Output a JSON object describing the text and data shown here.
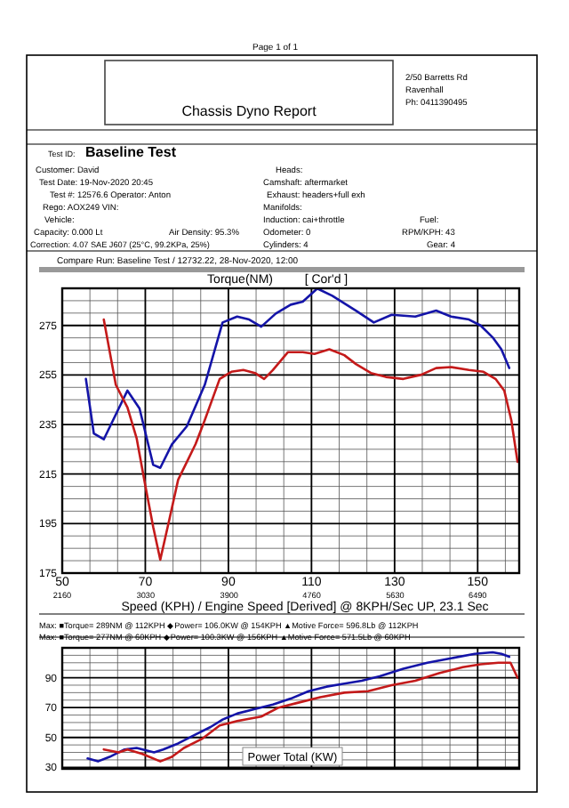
{
  "chart_data": [
    {
      "type": "line",
      "title": "Torque(NM)",
      "subtitle": "[ Cor'd ]",
      "xlabel": "Speed (KPH) / Engine Speed [Derived] @ 8KPH/Sec UP, 23.1 Sec",
      "annotations": [
        "Page 1 of 1",
        "Chassis Dyno Report",
        "2/50 Barretts Rd",
        "Ravenhall",
        "Ph: 0411390495",
        "Test ID:",
        "Baseline Test",
        "Customer: David",
        "Heads:",
        "Test Date: 19-Nov-2020 20:45",
        "Camshaft: aftermarket",
        "Test #: 12576.6 Operator: Anton",
        "Exhaust: headers+full exh",
        "Rego: AOX249 VIN:",
        "Manifolds:",
        "Vehicle:",
        "Induction: cai+throttle",
        "Fuel:",
        "Capacity: 0.000 Lt",
        "Air Density: 95.3%",
        "Odometer: 0",
        "RPM/KPH: 43",
        "Correction: 4.07 SAE J607 (25°C, 99.2KPa, 25%)",
        "Cylinders: 4",
        "Gear: 4",
        "Compare Run: Baseline Test / 12732.22, 28-Nov-2020, 12:00"
      ],
      "xlim": [
        50,
        160
      ],
      "ylim": [
        175,
        290
      ],
      "xticks": [
        50,
        70,
        90,
        110,
        130,
        150
      ],
      "x2lim": [
        2160,
        6923
      ],
      "x2ticks": [
        2160,
        3030,
        3900,
        4760,
        5630,
        6490
      ],
      "yticks": [
        175,
        195,
        215,
        235,
        255,
        275
      ],
      "grid": true,
      "series": [
        {
          "color": "#1414a8",
          "x": [
            55.7,
            57.6,
            60,
            63.6,
            65.7,
            68.6,
            71.9,
            73.6,
            76.4,
            80,
            84.3,
            88.6,
            92.1,
            95,
            97.9,
            101.4,
            105,
            107.9,
            111.4,
            115,
            120.7,
            125,
            129.3,
            135,
            140,
            143.6,
            147.9,
            150.7,
            153.6,
            155.7,
            157.6
          ],
          "values": [
            253.4,
            231.4,
            229,
            241.5,
            248.7,
            241.5,
            218.7,
            217.5,
            227,
            234.3,
            251,
            276.2,
            278.6,
            277.4,
            274.5,
            279.8,
            283.4,
            284.6,
            289.9,
            287,
            281,
            276.2,
            279.3,
            278.6,
            281,
            278.6,
            277.4,
            275,
            270.2,
            265.4,
            257.8
          ]
        },
        {
          "color": "#c41a1a",
          "x": [
            60,
            62.9,
            65.7,
            67.9,
            70,
            71.9,
            73.6,
            75.7,
            77.9,
            80,
            82.1,
            84.3,
            87.9,
            90.7,
            93.6,
            96.4,
            98.6,
            100.7,
            104.3,
            107.9,
            110.7,
            114.3,
            117.9,
            120.7,
            124.3,
            127.9,
            132.1,
            136.4,
            140,
            143.6,
            147.9,
            151.4,
            154.3,
            156.4,
            158.1,
            159.6
          ],
          "values": [
            277.4,
            251,
            241.9,
            229.5,
            210.3,
            193.6,
            180.4,
            196,
            212.7,
            219.9,
            227.1,
            236.7,
            253.4,
            256.3,
            257,
            255.8,
            253.4,
            257,
            264.2,
            264.2,
            263.5,
            265.4,
            263,
            259.4,
            255.8,
            254.2,
            253.4,
            255.1,
            257.8,
            258.2,
            257,
            256.3,
            253.4,
            248.7,
            236.7,
            219.9
          ]
        }
      ]
    },
    {
      "type": "line",
      "title": "Power Total (KW)",
      "annotations": [
        "Max: ■Torque= 289NM @ 112KPH  ◆Power= 106.0KW @ 154KPH  ▲Motive Force= 596.8Lb @ 112KPH",
        "Max: ■Torque= 277NM @ 60KPH  ◆Power= 100.3KW @ 156KPH  ▲Motive Force= 571.5Lb @ 60KPH"
      ],
      "xlim": [
        50,
        160
      ],
      "ylim": [
        29,
        110
      ],
      "xticks": [
        {
          "value": 50,
          "label": null
        },
        {
          "value": 70,
          "label": null
        },
        {
          "value": 90,
          "label": null
        },
        {
          "value": 110,
          "label": null
        },
        {
          "value": 130,
          "label": null
        },
        {
          "value": 150,
          "label": null
        }
      ],
      "yticks": [
        30,
        50,
        70,
        90
      ],
      "grid": true,
      "tick_labels": "y",
      "series": [
        {
          "color": "#1414a8",
          "x": [
            56.1,
            58.6,
            61.4,
            65,
            67.9,
            72.1,
            74.3,
            77.9,
            82.1,
            85.7,
            88.6,
            92.1,
            96.4,
            100.7,
            105,
            109.3,
            113.6,
            117.9,
            122.1,
            126.4,
            132.1,
            137.9,
            143.6,
            149.3,
            153.6,
            155.7,
            157.6
          ],
          "values": [
            36,
            34,
            37,
            42,
            43,
            40,
            42,
            46,
            52,
            57,
            62,
            66,
            69,
            72,
            76,
            81,
            84,
            86,
            88,
            91,
            96,
            100,
            103,
            106,
            107,
            106,
            104
          ]
        },
        {
          "color": "#c41a1a",
          "x": [
            60,
            63.6,
            65.7,
            69.3,
            73.6,
            76.4,
            79.3,
            83.6,
            87.9,
            92.1,
            97.9,
            102.1,
            106.4,
            112.1,
            117.9,
            123.6,
            129.3,
            135,
            140.7,
            146.4,
            150.7,
            155,
            157.9,
            159.6
          ],
          "values": [
            42,
            40,
            42,
            39,
            34,
            37,
            43,
            49,
            58,
            61,
            64,
            70,
            73,
            77,
            80,
            81,
            85,
            88,
            93,
            97,
            99,
            100,
            100,
            90
          ]
        }
      ]
    }
  ]
}
